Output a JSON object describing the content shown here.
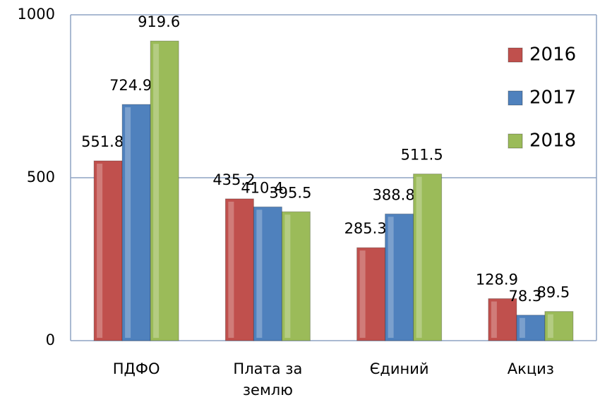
{
  "chart_data": {
    "type": "bar",
    "categories": [
      "ПДФО",
      "Плата за землю",
      "Єдиний",
      "Акциз"
    ],
    "series": [
      {
        "name": "2016",
        "color": "#c0504d",
        "values": [
          551.8,
          435.2,
          285.3,
          128.9
        ]
      },
      {
        "name": "2017",
        "color": "#4f81bd",
        "values": [
          724.9,
          410.4,
          388.8,
          78.3
        ]
      },
      {
        "name": "2018",
        "color": "#9bbb59",
        "values": [
          919.6,
          395.5,
          511.5,
          89.5
        ]
      }
    ],
    "ylim": [
      0,
      1000
    ],
    "yticks": [
      0,
      500,
      1000
    ],
    "grid": true,
    "legend": "right"
  }
}
